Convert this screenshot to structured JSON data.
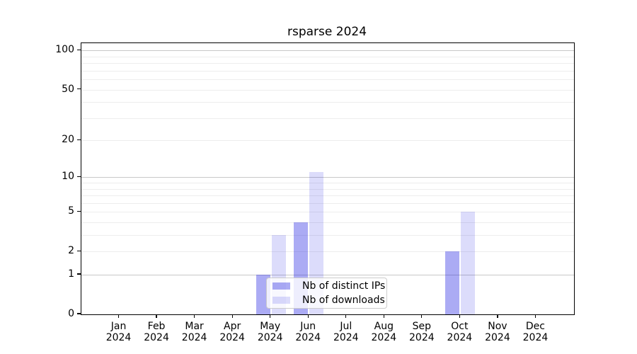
{
  "figure": {
    "title": "rsparse 2024",
    "background": "#ffffff"
  },
  "chart_data": {
    "type": "bar",
    "title": "rsparse 2024",
    "categories": [
      "Jan 2024",
      "Feb 2024",
      "Mar 2024",
      "Apr 2024",
      "May 2024",
      "Jun 2024",
      "Jul 2024",
      "Aug 2024",
      "Sep 2024",
      "Oct 2024",
      "Nov 2024",
      "Dec 2024"
    ],
    "month_labels": [
      "Jan",
      "Feb",
      "Mar",
      "Apr",
      "May",
      "Jun",
      "Jul",
      "Aug",
      "Sep",
      "Oct",
      "Nov",
      "Dec"
    ],
    "year_label": "2024",
    "series": [
      {
        "name": "Nb of distinct IPs",
        "color": "rgba(8,8,224,0.34)",
        "values": [
          0,
          0,
          0,
          0,
          1,
          4,
          0,
          0,
          0,
          2,
          0,
          0
        ]
      },
      {
        "name": "Nb of downloads",
        "color": "rgba(8,8,224,0.14)",
        "values": [
          0,
          0,
          0,
          0,
          3,
          11,
          0,
          0,
          0,
          5,
          0,
          0
        ]
      }
    ],
    "xlabel": "",
    "ylabel": "",
    "y_scale": "log1p",
    "ylim": [
      0,
      114
    ],
    "y_ticks": [
      0,
      1,
      2,
      5,
      10,
      20,
      50,
      100
    ],
    "y_major_gridlines": [
      1,
      10,
      100
    ],
    "y_minor_gridlines": [
      2,
      3,
      4,
      5,
      6,
      7,
      8,
      9,
      20,
      30,
      40,
      50,
      60,
      70,
      80,
      90
    ],
    "grid": "horizontal",
    "legend": {
      "position": "inside-bottom-center",
      "items": [
        "Nb of distinct IPs",
        "Nb of downloads"
      ]
    }
  },
  "colors": {
    "major_grid": "#c8c8c8",
    "minor_grid": "#ededed",
    "axis": "#000000",
    "legend_border": "#cccccc",
    "legend_bg": "rgba(255,255,255,0.8)",
    "bar_distinct_ips": "rgba(8,8,224,0.34)",
    "bar_downloads": "rgba(8,8,224,0.14)"
  }
}
